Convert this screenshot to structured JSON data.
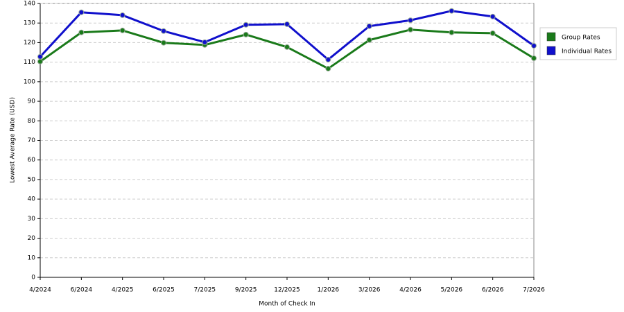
{
  "chart_data": {
    "type": "line",
    "x_label": "Month of Check In",
    "y_label": "Lowest Average Rate (USD)",
    "categories": [
      "4/2024",
      "6/2024",
      "4/2025",
      "6/2025",
      "7/2025",
      "9/2025",
      "12/2025",
      "1/2026",
      "3/2026",
      "4/2026",
      "5/2026",
      "6/2026",
      "7/2026"
    ],
    "series": [
      {
        "name": "Group Rates",
        "color": "#1a7a1a",
        "values": [
          110.3,
          125.2,
          126.2,
          119.9,
          118.8,
          124.1,
          117.7,
          106.7,
          121.3,
          126.6,
          125.2,
          124.8,
          112.0
        ]
      },
      {
        "name": "Individual Rates",
        "color": "#1010cc",
        "values": [
          112.8,
          135.5,
          134.0,
          125.9,
          120.2,
          129.1,
          129.4,
          111.3,
          128.4,
          131.4,
          136.2,
          133.3,
          118.4
        ]
      }
    ],
    "ylim": [
      0,
      140
    ],
    "yticks": [
      0,
      10,
      20,
      30,
      40,
      50,
      60,
      70,
      80,
      90,
      100,
      110,
      120,
      130,
      140
    ],
    "grid": true
  }
}
